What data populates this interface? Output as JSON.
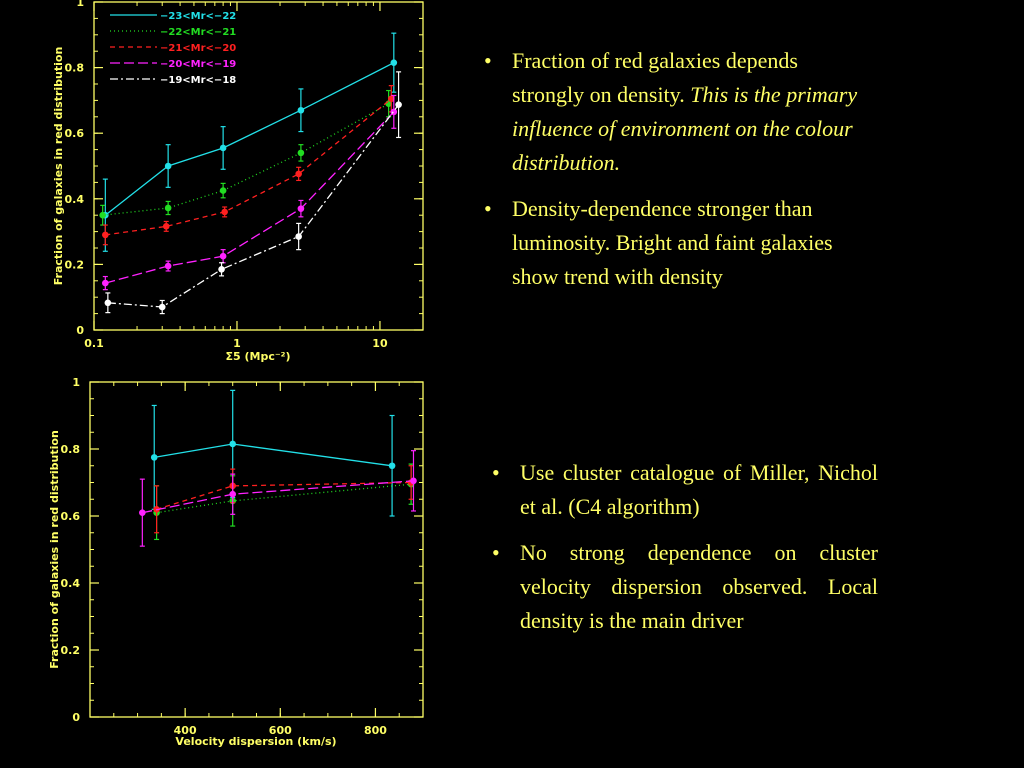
{
  "charts": [
    {
      "type": "line",
      "xscale": "log",
      "xlim": [
        0.1,
        20
      ],
      "ylim": [
        0,
        1
      ],
      "xticks": [
        {
          "v": 0.1,
          "label": "0.1"
        },
        {
          "v": 1,
          "label": "1"
        },
        {
          "v": 10,
          "label": "10"
        }
      ],
      "yticks": [
        {
          "v": 0,
          "label": "0"
        },
        {
          "v": 0.2,
          "label": "0.2"
        },
        {
          "v": 0.4,
          "label": "0.4"
        },
        {
          "v": 0.6,
          "label": "0.6"
        },
        {
          "v": 0.8,
          "label": "0.8"
        },
        {
          "v": 1,
          "label": "1"
        }
      ],
      "xlabel": "Σ5 (Mpc⁻²)",
      "ylabel": "Fraction of galaxies in red distribution",
      "legend": [
        {
          "label": "−23<Mr<−22",
          "color": "#22e0e8",
          "dash": ""
        },
        {
          "label": "−22<Mr<−21",
          "color": "#22dd22",
          "dash": "1,3"
        },
        {
          "label": "−21<Mr<−20",
          "color": "#ff2020",
          "dash": "5,4"
        },
        {
          "label": "−20<Mr<−19",
          "color": "#ff22ff",
          "dash": "10,4"
        },
        {
          "label": "−19<Mr<−18",
          "color": "#ffffff",
          "dash": "8,3,2,3"
        }
      ],
      "series": [
        {
          "name": "−23<Mr<−22",
          "color": "#22e0e8",
          "dash": "",
          "x": [
            0.12,
            0.33,
            0.8,
            2.8,
            12.5
          ],
          "y": [
            0.35,
            0.5,
            0.555,
            0.67,
            0.815
          ],
          "err": [
            0.11,
            0.065,
            0.065,
            0.065,
            0.09
          ]
        },
        {
          "name": "−22<Mr<−21",
          "color": "#22dd22",
          "dash": "1,3",
          "x": [
            0.115,
            0.33,
            0.8,
            2.8,
            11.5
          ],
          "y": [
            0.35,
            0.372,
            0.425,
            0.54,
            0.69
          ],
          "err": [
            0.03,
            0.02,
            0.022,
            0.025,
            0.04
          ]
        },
        {
          "name": "−21<Mr<−20",
          "color": "#ff2020",
          "dash": "5,4",
          "x": [
            0.12,
            0.32,
            0.82,
            2.7,
            12.0
          ],
          "y": [
            0.29,
            0.316,
            0.36,
            0.476,
            0.705
          ],
          "err": [
            0.03,
            0.015,
            0.015,
            0.02,
            0.04
          ]
        },
        {
          "name": "−20<Mr<−19",
          "color": "#ff22ff",
          "dash": "10,4",
          "x": [
            0.12,
            0.33,
            0.8,
            2.8,
            12.5
          ],
          "y": [
            0.143,
            0.195,
            0.225,
            0.37,
            0.665
          ],
          "err": [
            0.02,
            0.015,
            0.02,
            0.025,
            0.05
          ]
        },
        {
          "name": "−19<Mr<−18",
          "color": "#ffffff",
          "dash": "8,3,2,3",
          "x": [
            0.125,
            0.3,
            0.78,
            2.7,
            13.5
          ],
          "y": [
            0.083,
            0.07,
            0.185,
            0.285,
            0.687
          ],
          "err": [
            0.03,
            0.02,
            0.02,
            0.04,
            0.1
          ]
        }
      ]
    },
    {
      "type": "line",
      "xscale": "linear",
      "xlim": [
        200,
        900
      ],
      "ylim": [
        0,
        1
      ],
      "xticks": [
        {
          "v": 400,
          "label": "400"
        },
        {
          "v": 600,
          "label": "600"
        },
        {
          "v": 800,
          "label": "800"
        }
      ],
      "yticks": [
        {
          "v": 0,
          "label": "0"
        },
        {
          "v": 0.2,
          "label": "0.2"
        },
        {
          "v": 0.4,
          "label": "0.4"
        },
        {
          "v": 0.6,
          "label": "0.6"
        },
        {
          "v": 0.8,
          "label": "0.8"
        },
        {
          "v": 1,
          "label": "1"
        }
      ],
      "xlabel": "Velocity dispersion (km/s)",
      "ylabel": "Fraction of galaxies in red distribution",
      "series": [
        {
          "name": "−23<Mr<−22",
          "color": "#22e0e8",
          "dash": "",
          "x": [
            335,
            500,
            835
          ],
          "y": [
            0.775,
            0.815,
            0.75
          ],
          "err": [
            0.155,
            0.16,
            0.15
          ]
        },
        {
          "name": "−22<Mr<−21",
          "color": "#22dd22",
          "dash": "1,3",
          "x": [
            340,
            500,
            875
          ],
          "y": [
            0.61,
            0.645,
            0.695
          ],
          "err": [
            0.08,
            0.075,
            0.06
          ]
        },
        {
          "name": "−21<Mr<−20",
          "color": "#ff2020",
          "dash": "5,4",
          "x": [
            340,
            500,
            875
          ],
          "y": [
            0.62,
            0.69,
            0.7
          ],
          "err": [
            0.07,
            0.05,
            0.05
          ]
        },
        {
          "name": "−20<Mr<−19",
          "color": "#ff22ff",
          "dash": "10,4",
          "x": [
            310,
            500,
            880
          ],
          "y": [
            0.61,
            0.665,
            0.705
          ],
          "err": [
            0.1,
            0.06,
            0.09
          ]
        }
      ]
    }
  ],
  "text": {
    "top": [
      {
        "plain": "Fraction of  red galaxies depends strongly on density.",
        "italic": "This is the primary influence of environment  on the colour distribution."
      },
      {
        "plain": "Density-dependence stronger than luminosity.  Bright and faint galaxies show trend with density",
        "italic": ""
      }
    ],
    "bottom": [
      {
        "plain": "Use cluster catalogue of Miller, Nichol et al. (C4 algorithm)"
      },
      {
        "plain": "No strong dependence on cluster velocity dispersion observed.  Local density is the main driver"
      }
    ],
    "bullet": "•"
  },
  "colors": {
    "axis": "#ffff66",
    "background": "#000000"
  }
}
